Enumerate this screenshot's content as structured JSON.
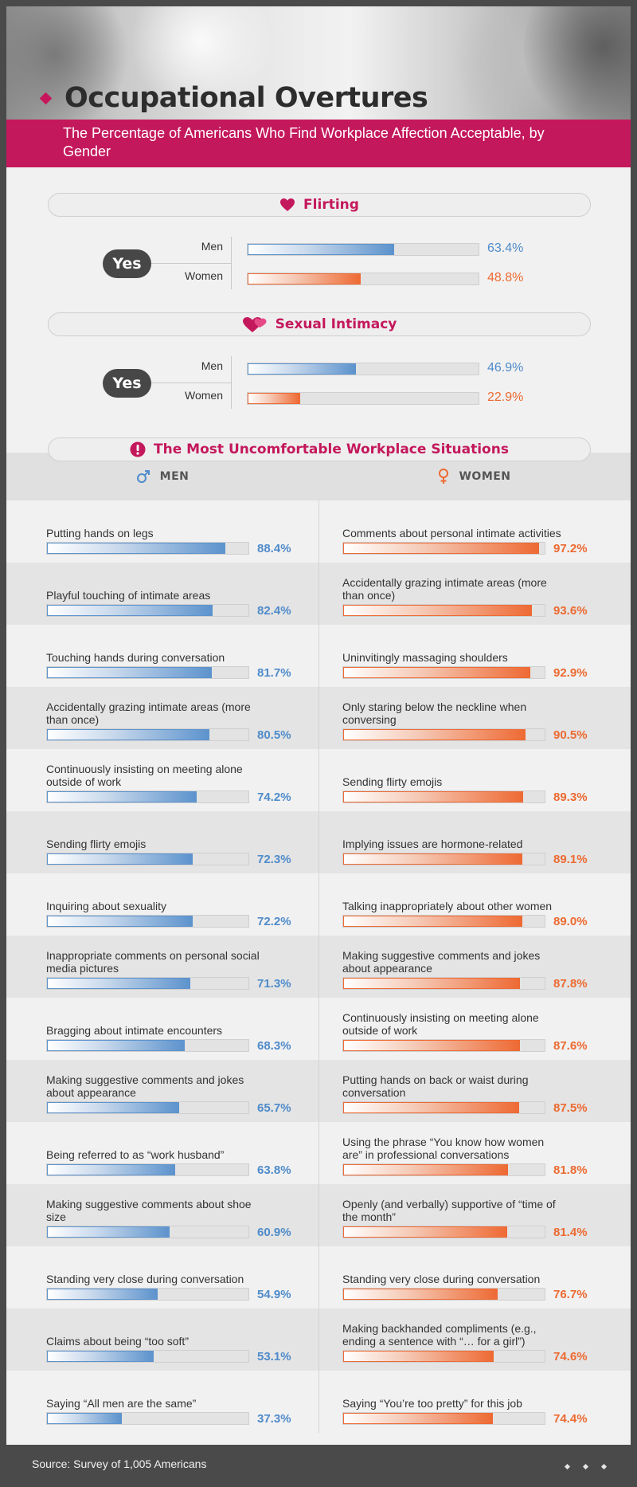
{
  "title": "Occupational Overtures",
  "subtitle": "The Percentage of Americans Who Find Workplace Affection Acceptable, by Gender",
  "colors": {
    "accent": "#c4185c",
    "men": "#4f8bca",
    "women": "#ec6a31"
  },
  "sections": {
    "flirting": {
      "title": "Flirting",
      "icon": "heart-icon",
      "yes_label": "Yes",
      "men_label": "Men",
      "women_label": "Women",
      "men_pct": "63.4%",
      "women_pct": "48.8%"
    },
    "intimacy": {
      "title": "Sexual Intimacy",
      "icon": "double-heart-icon",
      "yes_label": "Yes",
      "men_label": "Men",
      "women_label": "Women",
      "men_pct": "46.9%",
      "women_pct": "22.9%"
    },
    "situations": {
      "title": "The Most Uncomfortable Workplace Situations",
      "icon": "exclamation-icon",
      "men_header": "MEN",
      "women_header": "WOMEN"
    }
  },
  "source": "Source: Survey of 1,005 Americans",
  "chart_data": [
    {
      "type": "bar",
      "title": "Flirting",
      "categories": [
        "Men",
        "Women"
      ],
      "values": [
        63.4,
        48.8
      ],
      "ylim": [
        0,
        100
      ]
    },
    {
      "type": "bar",
      "title": "Sexual Intimacy",
      "categories": [
        "Men",
        "Women"
      ],
      "values": [
        46.9,
        22.9
      ],
      "ylim": [
        0,
        100
      ]
    },
    {
      "type": "bar",
      "title": "The Most Uncomfortable Workplace Situations",
      "series": [
        {
          "name": "MEN",
          "labels": [
            "Putting hands on legs",
            "Playful touching of intimate areas",
            "Touching hands during conversation",
            "Accidentally grazing intimate areas (more than once)",
            "Continuously insisting on meeting alone outside of work",
            "Sending flirty emojis",
            "Inquiring about sexuality",
            "Inappropriate comments on personal social media pictures",
            "Bragging about intimate encounters",
            "Making suggestive comments and jokes about appearance",
            "Being referred to as “work husband”",
            "Making suggestive comments about shoe size",
            "Standing very close during conversation",
            "Claims about being “too soft”",
            "Saying “All men are the same”"
          ],
          "values": [
            88.4,
            82.4,
            81.7,
            80.5,
            74.2,
            72.3,
            72.2,
            71.3,
            68.3,
            65.7,
            63.8,
            60.9,
            54.9,
            53.1,
            37.3
          ]
        },
        {
          "name": "WOMEN",
          "labels": [
            "Comments about personal intimate activities",
            "Accidentally grazing intimate areas (more than once)",
            "Uninvitingly massaging shoulders",
            "Only staring below the neckline when conversing",
            "Sending flirty emojis",
            "Implying issues are hormone-related",
            "Talking inappropriately about other women",
            "Making suggestive comments and jokes about appearance",
            "Continuously insisting on meeting alone outside of work",
            "Putting hands on back or waist during conversation",
            "Using the phrase “You know how women are” in professional conversations",
            "Openly (and verbally) supportive of “time of the month”",
            "Standing very close during conversation",
            "Making backhanded compliments (e.g., ending a sentence with “… for a girl”)",
            "Saying “You’re too pretty” for this job"
          ],
          "values": [
            97.2,
            93.6,
            92.9,
            90.5,
            89.3,
            89.1,
            89.0,
            87.8,
            87.6,
            87.5,
            81.8,
            81.4,
            76.7,
            74.6,
            74.4
          ]
        }
      ],
      "xlim": [
        0,
        100
      ]
    }
  ]
}
